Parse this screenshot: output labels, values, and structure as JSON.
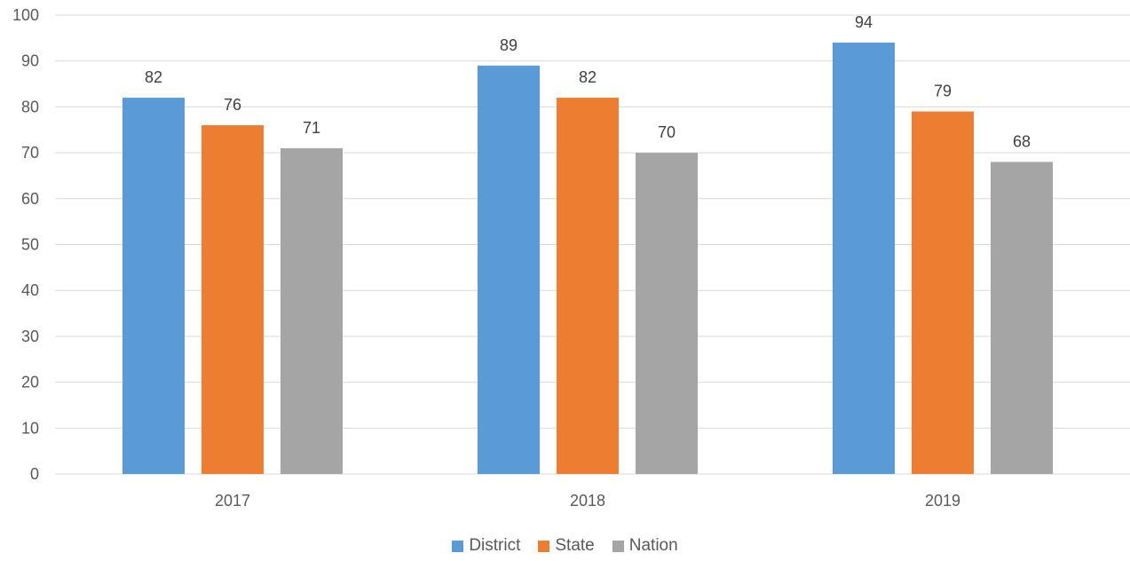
{
  "chart_data": {
    "type": "bar",
    "categories": [
      "2017",
      "2018",
      "2019"
    ],
    "series": [
      {
        "name": "District",
        "values": [
          82,
          89,
          94
        ],
        "color": "#5B9BD5"
      },
      {
        "name": "State",
        "values": [
          76,
          82,
          79
        ],
        "color": "#ED7D31"
      },
      {
        "name": "Nation",
        "values": [
          71,
          70,
          68
        ],
        "color": "#A5A5A5"
      }
    ],
    "ylim": [
      0,
      100
    ],
    "yticks": [
      "0",
      "10",
      "20",
      "30",
      "40",
      "50",
      "60",
      "70",
      "80",
      "90",
      "100"
    ],
    "grid": true,
    "legend_position": "bottom",
    "data_labels": true
  }
}
